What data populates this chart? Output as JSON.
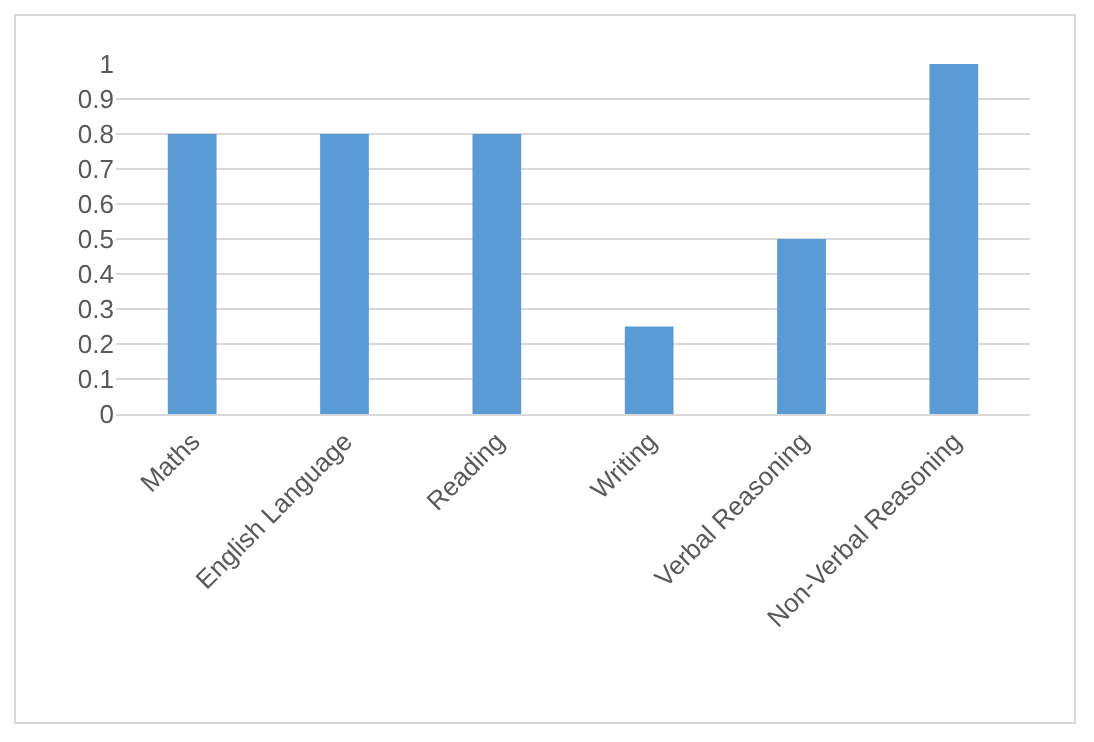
{
  "chart_data": {
    "type": "bar",
    "categories": [
      "Maths",
      "English Language",
      "Reading",
      "Writing",
      "Verbal Reasoning",
      "Non-Verbal Reasoning"
    ],
    "values": [
      0.8,
      0.8,
      0.8,
      0.25,
      0.5,
      1
    ],
    "color": "#5b9bd5",
    "ylim": [
      0,
      1
    ],
    "yticks": [
      0,
      0.1,
      0.2,
      0.3,
      0.4,
      0.5,
      0.6,
      0.7,
      0.8,
      0.9,
      1
    ],
    "grid": "y",
    "legend": false
  }
}
